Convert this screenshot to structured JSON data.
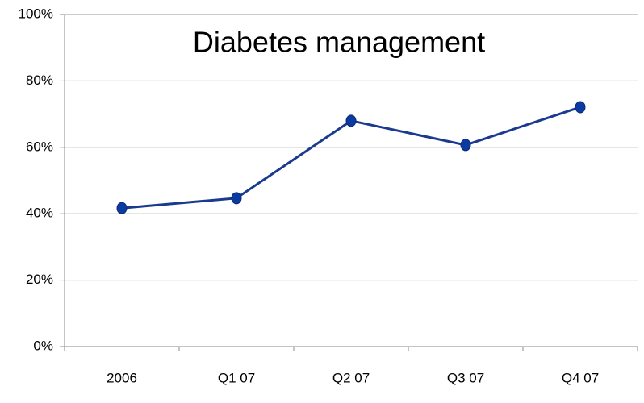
{
  "chart_data": {
    "type": "line",
    "title": "Diabetes management",
    "categories": [
      "2006",
      "Q1 07",
      "Q2 07",
      "Q3 07",
      "Q4 07"
    ],
    "series": [
      {
        "name": "Diabetes management",
        "color": "#1a3a8f",
        "values": [
          41.7,
          44.7,
          68,
          60.7,
          72.1
        ]
      }
    ],
    "ylim": [
      0,
      100
    ],
    "yticks": [
      {
        "value": 0,
        "label": "0%"
      },
      {
        "value": 20,
        "label": "20%"
      },
      {
        "value": 40,
        "label": "40%"
      },
      {
        "value": 60,
        "label": "60%"
      },
      {
        "value": 80,
        "label": "80%"
      },
      {
        "value": 100,
        "label": "100%"
      }
    ],
    "grid": true
  }
}
